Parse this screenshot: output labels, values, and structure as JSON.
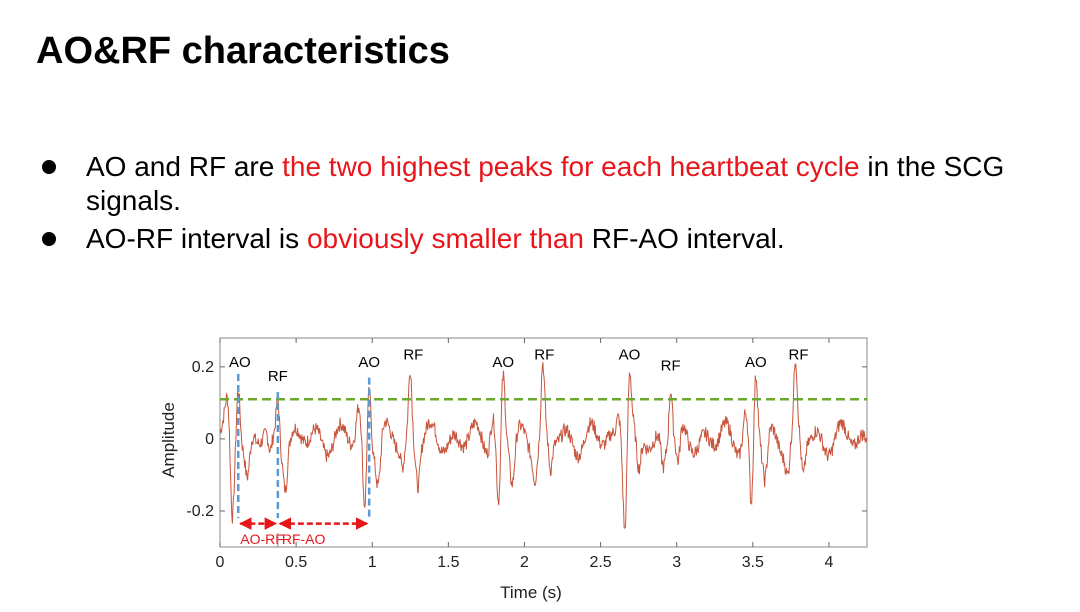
{
  "slide": {
    "title": "AO&RF characteristics",
    "bullets": [
      {
        "parts": [
          {
            "text": "AO and RF are ",
            "color": "#000000"
          },
          {
            "text": "the two highest peaks for each heartbeat cycle",
            "color": "#e8161b"
          },
          {
            "text": " in the SCG signals.",
            "color": "#000000"
          }
        ]
      },
      {
        "parts": [
          {
            "text": "AO-RF interval is ",
            "color": "#000000"
          },
          {
            "text": "obviously smaller than",
            "color": "#e8161b"
          },
          {
            "text": " RF-AO interval.",
            "color": "#000000"
          }
        ]
      }
    ]
  },
  "chart_data": {
    "type": "line",
    "xlabel": "Time (s)",
    "ylabel": "Amplitude",
    "xlim": [
      0,
      4.25
    ],
    "ylim": [
      -0.3,
      0.28
    ],
    "xticks": [
      0,
      0.5,
      1,
      1.5,
      2,
      2.5,
      3,
      3.5,
      4
    ],
    "xtick_labels": [
      "0",
      "0.5",
      "1",
      "1.5",
      "2",
      "2.5",
      "3",
      "3.5",
      "4"
    ],
    "yticks": [
      -0.2,
      0,
      0.2
    ],
    "ytick_labels": [
      "-0.2",
      "0",
      "0.2"
    ],
    "signal_color": "#c8553d",
    "threshold": {
      "y": 0.11,
      "color": "#6aa832",
      "style": "dashed"
    },
    "beats": [
      {
        "ao_t": 0.12,
        "ao_amp": 0.18,
        "rf_t": 0.38,
        "rf_amp": 0.13,
        "trough_t": 0.08,
        "trough_amp": -0.22
      },
      {
        "ao_t": 0.98,
        "ao_amp": 0.17,
        "rf_t": 1.25,
        "rf_amp": 0.19,
        "trough_t": 0.95,
        "trough_amp": -0.2
      },
      {
        "ao_t": 1.86,
        "ao_amp": 0.17,
        "rf_t": 2.12,
        "rf_amp": 0.19,
        "trough_t": 1.83,
        "trough_amp": -0.2
      },
      {
        "ao_t": 2.69,
        "ao_amp": 0.19,
        "rf_t": 2.96,
        "rf_amp": 0.16,
        "trough_t": 2.66,
        "trough_amp": -0.23
      },
      {
        "ao_t": 3.52,
        "ao_amp": 0.18,
        "rf_t": 3.78,
        "rf_amp": 0.19,
        "trough_t": 3.49,
        "trough_amp": -0.21
      }
    ],
    "peak_labels": [
      {
        "text": "AO",
        "t": 0.13,
        "amp": 0.2
      },
      {
        "text": "RF",
        "t": 0.38,
        "amp": 0.16
      },
      {
        "text": "AO",
        "t": 0.98,
        "amp": 0.2
      },
      {
        "text": "RF",
        "t": 1.27,
        "amp": 0.22
      },
      {
        "text": "AO",
        "t": 1.86,
        "amp": 0.2
      },
      {
        "text": "RF",
        "t": 2.13,
        "amp": 0.22
      },
      {
        "text": "AO",
        "t": 2.69,
        "amp": 0.22
      },
      {
        "text": "RF",
        "t": 2.96,
        "amp": 0.19
      },
      {
        "text": "AO",
        "t": 3.52,
        "amp": 0.2
      },
      {
        "text": "RF",
        "t": 3.8,
        "amp": 0.22
      }
    ],
    "markers": {
      "color": "#5b9bd5",
      "times": [
        0.12,
        0.38,
        0.98
      ],
      "bottom_amp": -0.22
    },
    "intervals": [
      {
        "label": "AO-RF",
        "t1": 0.12,
        "t2": 0.38,
        "amp": -0.235
      },
      {
        "label": "RF-AO",
        "t1": 0.38,
        "t2": 0.98,
        "amp": -0.235
      }
    ],
    "interval_color": "#e8161b"
  }
}
